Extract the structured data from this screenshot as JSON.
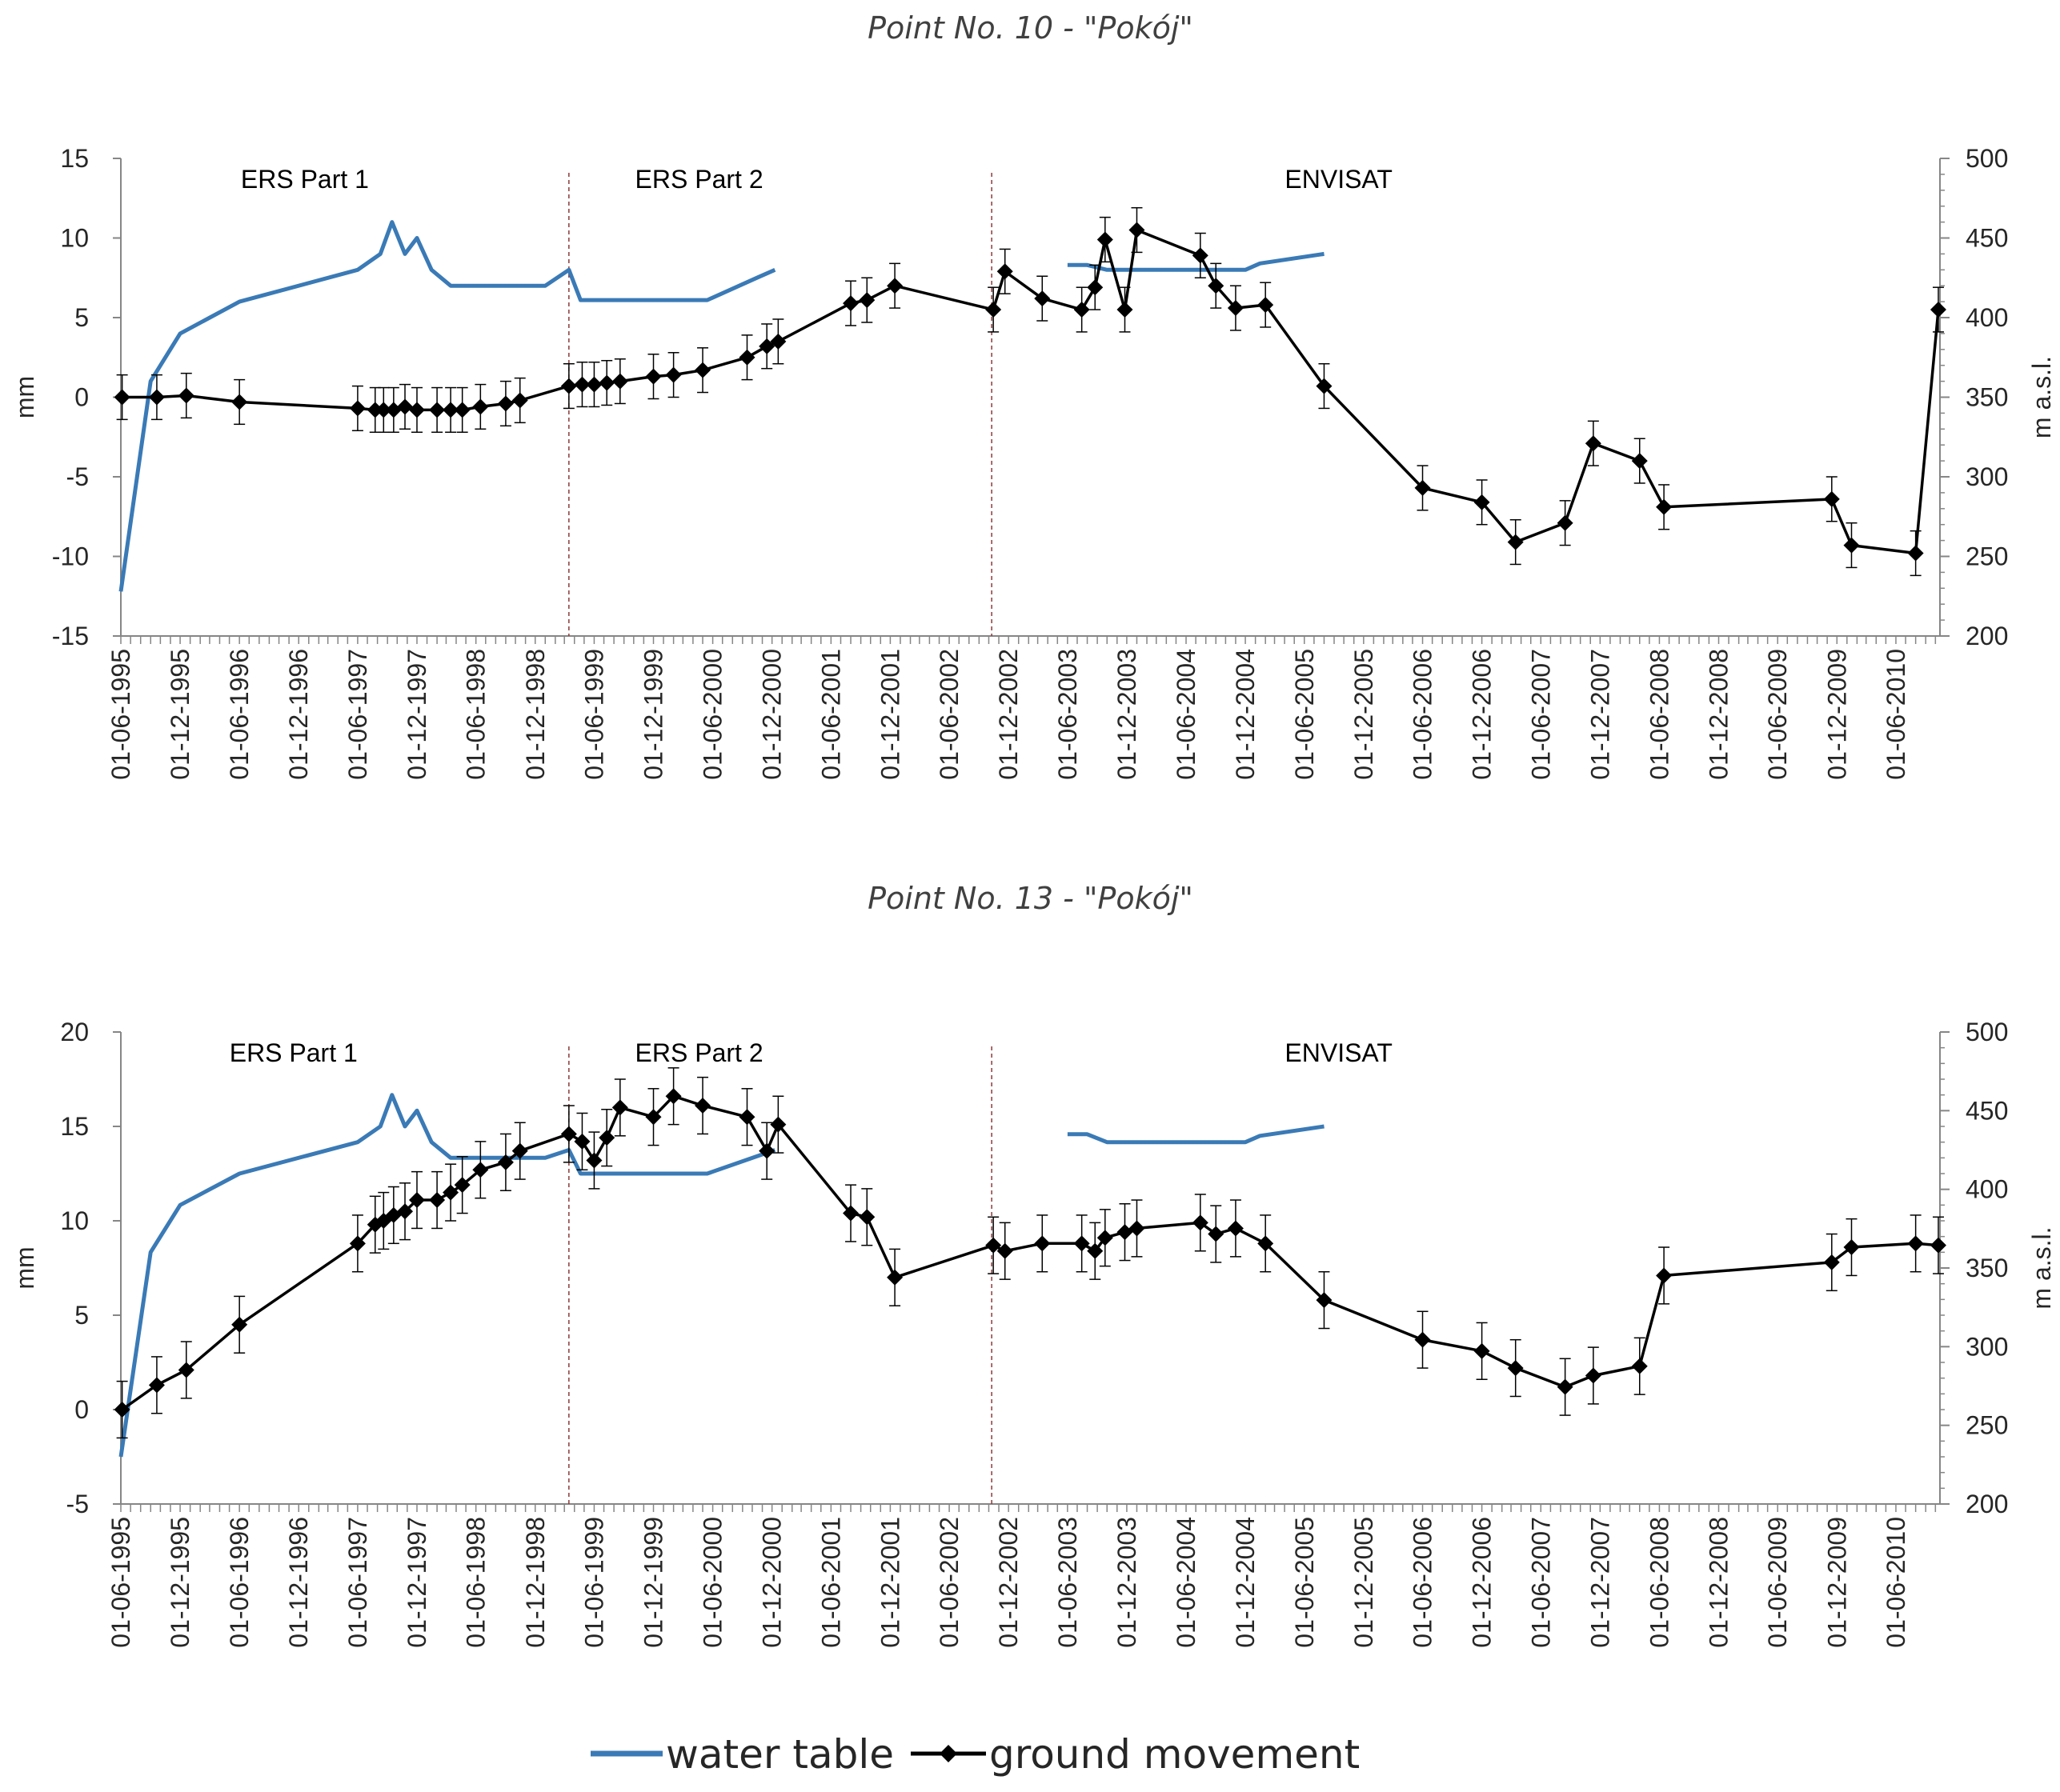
{
  "legend": [
    {
      "key": "water",
      "label": "water table",
      "color": "#3a7ab6"
    },
    {
      "key": "ground",
      "label": "ground movement",
      "color": "#000000"
    }
  ],
  "chart_data": [
    {
      "type": "line",
      "title": "Point No. 10 - \"Pokój\"",
      "ylabel": "mm",
      "y2label": "m a.s.l.",
      "ylim": [
        -15,
        15
      ],
      "y2lim": [
        200,
        500
      ],
      "yticks": [
        "15",
        "10",
        "5",
        "0",
        "-5",
        "-10",
        "-15"
      ],
      "y2ticks": [
        "500",
        "450",
        "400",
        "350",
        "300",
        "250",
        "200"
      ],
      "xtick_labels": [
        "01-06-1995",
        "01-12-1995",
        "01-06-1996",
        "01-12-1996",
        "01-06-1997",
        "01-12-1997",
        "01-06-1998",
        "01-12-1998",
        "01-06-1999",
        "01-12-1999",
        "01-06-2000",
        "01-12-2000",
        "01-06-2001",
        "01-12-2001",
        "01-06-2002",
        "01-12-2002",
        "01-06-2003",
        "01-12-2003",
        "01-06-2004",
        "01-12-2004",
        "01-06-2005",
        "01-12-2005",
        "01-06-2006",
        "01-12-2006",
        "01-06-2007",
        "01-12-2007",
        "01-06-2008",
        "01-12-2008",
        "01-06-2009",
        "01-12-2009",
        "01-06-2010"
      ],
      "xlim": [
        "1995-06-01",
        "2010-10-15"
      ],
      "periods": [
        {
          "label": "ERS Part 1",
          "at": "1996-12-20"
        },
        {
          "label": "ERS Part 2",
          "at": "2000-04-20"
        },
        {
          "label": "ENVISAT",
          "at": "2005-09-15"
        }
      ],
      "dividers": [
        "1999-03-15",
        "2002-10-10"
      ],
      "series": [
        {
          "key": "water",
          "axis": "right",
          "segments": [
            [
              [
                "1995-06-01",
                228
              ],
              [
                "1995-09-01",
                360
              ],
              [
                "1995-12-01",
                390
              ],
              [
                "1996-06-01",
                410
              ],
              [
                "1997-06-01",
                430
              ],
              [
                "1997-08-10",
                440
              ],
              [
                "1997-09-15",
                460
              ],
              [
                "1997-10-25",
                440
              ],
              [
                "1997-12-01",
                450
              ],
              [
                "1998-01-15",
                430
              ],
              [
                "1998-03-15",
                420
              ],
              [
                "1999-01-01",
                420
              ],
              [
                "1999-03-15",
                430
              ],
              [
                "1999-04-20",
                411
              ],
              [
                "2000-05-15",
                411
              ],
              [
                "2000-10-15",
                425
              ],
              [
                "2000-12-10",
                430
              ]
            ],
            [
              [
                "2003-06-01",
                433
              ],
              [
                "2003-08-01",
                433
              ],
              [
                "2003-10-01",
                430
              ],
              [
                "2004-01-01",
                430
              ],
              [
                "2004-10-01",
                430
              ],
              [
                "2004-12-01",
                430
              ],
              [
                "2005-01-15",
                434
              ],
              [
                "2005-08-01",
                440
              ]
            ]
          ]
        },
        {
          "key": "ground",
          "axis": "left",
          "err": 1.4,
          "points": [
            [
              "1995-06-05",
              0
            ],
            [
              "1995-09-20",
              0
            ],
            [
              "1995-12-20",
              0.1
            ],
            [
              "1996-06-01",
              -0.3
            ],
            [
              "1997-06-01",
              -0.7
            ],
            [
              "1997-07-25",
              -0.8
            ],
            [
              "1997-08-20",
              -0.8
            ],
            [
              "1997-09-20",
              -0.8
            ],
            [
              "1997-10-25",
              -0.6
            ],
            [
              "1997-12-01",
              -0.8
            ],
            [
              "1998-02-01",
              -0.8
            ],
            [
              "1998-03-15",
              -0.8
            ],
            [
              "1998-04-20",
              -0.8
            ],
            [
              "1998-06-15",
              -0.6
            ],
            [
              "1998-09-01",
              -0.4
            ],
            [
              "1998-10-15",
              -0.2
            ],
            [
              "1999-03-15",
              0.7
            ],
            [
              "1999-04-25",
              0.8
            ],
            [
              "1999-06-01",
              0.8
            ],
            [
              "1999-07-10",
              0.9
            ],
            [
              "1999-08-20",
              1.0
            ],
            [
              "1999-12-01",
              1.3
            ],
            [
              "2000-02-01",
              1.4
            ],
            [
              "2000-05-01",
              1.7
            ],
            [
              "2000-09-15",
              2.5
            ],
            [
              "2000-11-15",
              3.2
            ],
            [
              "2000-12-20",
              3.5
            ],
            [
              "2001-08-01",
              5.9
            ],
            [
              "2001-09-20",
              6.1
            ],
            [
              "2001-12-15",
              7.0
            ],
            [
              "2002-10-15",
              5.5
            ],
            [
              "2002-11-20",
              7.9
            ],
            [
              "2003-03-15",
              6.2
            ],
            [
              "2003-07-15",
              5.5
            ],
            [
              "2003-08-25",
              6.9
            ],
            [
              "2003-09-25",
              9.9
            ],
            [
              "2003-11-25",
              5.5
            ],
            [
              "2004-01-01",
              10.5
            ],
            [
              "2004-07-15",
              8.9
            ],
            [
              "2004-09-01",
              7.0
            ],
            [
              "2004-11-01",
              5.6
            ],
            [
              "2005-02-01",
              5.8
            ],
            [
              "2005-08-01",
              0.7
            ],
            [
              "2006-06-01",
              -5.7
            ],
            [
              "2006-12-01",
              -6.6
            ],
            [
              "2007-03-15",
              -9.1
            ],
            [
              "2007-08-15",
              -7.9
            ],
            [
              "2007-11-10",
              -2.9
            ],
            [
              "2008-04-01",
              -4.0
            ],
            [
              "2008-06-15",
              -6.9
            ],
            [
              "2009-11-15",
              -6.4
            ],
            [
              "2010-01-15",
              -9.3
            ],
            [
              "2010-08-01",
              -9.8
            ],
            [
              "2010-10-10",
              5.5
            ]
          ]
        }
      ]
    },
    {
      "type": "line",
      "title": "Point No. 13 - \"Pokój\"",
      "ylabel": "mm",
      "y2label": "m a.s.l.",
      "ylim": [
        -5,
        20
      ],
      "y2lim": [
        200,
        500
      ],
      "yticks": [
        "20",
        "15",
        "10",
        "5",
        "0",
        "-5"
      ],
      "y2ticks": [
        "500",
        "450",
        "400",
        "350",
        "300",
        "250",
        "200"
      ],
      "xtick_labels": [
        "01-06-1995",
        "01-12-1995",
        "01-06-1996",
        "01-12-1996",
        "01-06-1997",
        "01-12-1997",
        "01-06-1998",
        "01-12-1998",
        "01-06-1999",
        "01-12-1999",
        "01-06-2000",
        "01-12-2000",
        "01-06-2001",
        "01-12-2001",
        "01-06-2002",
        "01-12-2002",
        "01-06-2003",
        "01-12-2003",
        "01-06-2004",
        "01-12-2004",
        "01-06-2005",
        "01-12-2005",
        "01-06-2006",
        "01-12-2006",
        "01-06-2007",
        "01-12-2007",
        "01-06-2008",
        "01-12-2008",
        "01-06-2009",
        "01-12-2009",
        "01-06-2010"
      ],
      "xlim": [
        "1995-06-01",
        "2010-10-15"
      ],
      "periods": [
        {
          "label": "ERS Part 1",
          "at": "1996-11-15"
        },
        {
          "label": "ERS Part 2",
          "at": "2000-04-20"
        },
        {
          "label": "ENVISAT",
          "at": "2005-09-15"
        }
      ],
      "dividers": [
        "1999-03-15",
        "2002-10-10"
      ],
      "series": [
        {
          "key": "water",
          "axis": "right",
          "segments": [
            [
              [
                "1995-06-01",
                230
              ],
              [
                "1995-09-01",
                360
              ],
              [
                "1995-12-01",
                390
              ],
              [
                "1996-06-01",
                410
              ],
              [
                "1997-06-01",
                430
              ],
              [
                "1997-08-10",
                440
              ],
              [
                "1997-09-15",
                460
              ],
              [
                "1997-10-25",
                440
              ],
              [
                "1997-12-01",
                450
              ],
              [
                "1998-01-15",
                430
              ],
              [
                "1998-03-15",
                420
              ],
              [
                "1999-01-01",
                420
              ],
              [
                "1999-03-15",
                425
              ],
              [
                "1999-04-20",
                410
              ],
              [
                "2000-05-15",
                410
              ],
              [
                "2000-12-10",
                425
              ]
            ],
            [
              [
                "2003-06-01",
                435
              ],
              [
                "2003-08-01",
                435
              ],
              [
                "2003-10-01",
                430
              ],
              [
                "2004-01-01",
                430
              ],
              [
                "2004-10-01",
                430
              ],
              [
                "2004-12-01",
                430
              ],
              [
                "2005-01-15",
                434
              ],
              [
                "2005-08-01",
                440
              ]
            ]
          ]
        },
        {
          "key": "ground",
          "axis": "left",
          "err": 1.5,
          "points": [
            [
              "1995-06-05",
              0
            ],
            [
              "1995-09-20",
              1.3
            ],
            [
              "1995-12-20",
              2.1
            ],
            [
              "1996-06-01",
              4.5
            ],
            [
              "1997-06-01",
              8.8
            ],
            [
              "1997-07-25",
              9.8
            ],
            [
              "1997-08-20",
              10.0
            ],
            [
              "1997-09-20",
              10.3
            ],
            [
              "1997-10-25",
              10.5
            ],
            [
              "1997-12-01",
              11.1
            ],
            [
              "1998-02-01",
              11.1
            ],
            [
              "1998-03-15",
              11.5
            ],
            [
              "1998-04-20",
              11.9
            ],
            [
              "1998-06-15",
              12.7
            ],
            [
              "1998-09-01",
              13.1
            ],
            [
              "1998-10-15",
              13.7
            ],
            [
              "1999-03-15",
              14.6
            ],
            [
              "1999-04-25",
              14.2
            ],
            [
              "1999-06-01",
              13.2
            ],
            [
              "1999-07-10",
              14.4
            ],
            [
              "1999-08-20",
              16.0
            ],
            [
              "1999-12-01",
              15.5
            ],
            [
              "2000-02-01",
              16.6
            ],
            [
              "2000-05-01",
              16.1
            ],
            [
              "2000-09-15",
              15.5
            ],
            [
              "2000-11-15",
              13.7
            ],
            [
              "2000-12-20",
              15.1
            ],
            [
              "2001-08-01",
              10.4
            ],
            [
              "2001-09-20",
              10.2
            ],
            [
              "2001-12-15",
              7.0
            ],
            [
              "2002-10-15",
              8.7
            ],
            [
              "2002-11-20",
              8.4
            ],
            [
              "2003-03-15",
              8.8
            ],
            [
              "2003-07-15",
              8.8
            ],
            [
              "2003-08-25",
              8.4
            ],
            [
              "2003-09-25",
              9.1
            ],
            [
              "2003-11-25",
              9.4
            ],
            [
              "2004-01-01",
              9.6
            ],
            [
              "2004-07-15",
              9.9
            ],
            [
              "2004-09-01",
              9.3
            ],
            [
              "2004-11-01",
              9.6
            ],
            [
              "2005-02-01",
              8.8
            ],
            [
              "2005-08-01",
              5.8
            ],
            [
              "2006-06-01",
              3.7
            ],
            [
              "2006-12-01",
              3.1
            ],
            [
              "2007-03-15",
              2.2
            ],
            [
              "2007-08-15",
              1.2
            ],
            [
              "2007-11-10",
              1.8
            ],
            [
              "2008-04-01",
              2.3
            ],
            [
              "2008-06-15",
              7.1
            ],
            [
              "2009-11-15",
              7.8
            ],
            [
              "2010-01-15",
              8.6
            ],
            [
              "2010-08-01",
              8.8
            ],
            [
              "2010-10-10",
              8.7
            ]
          ]
        }
      ]
    }
  ]
}
